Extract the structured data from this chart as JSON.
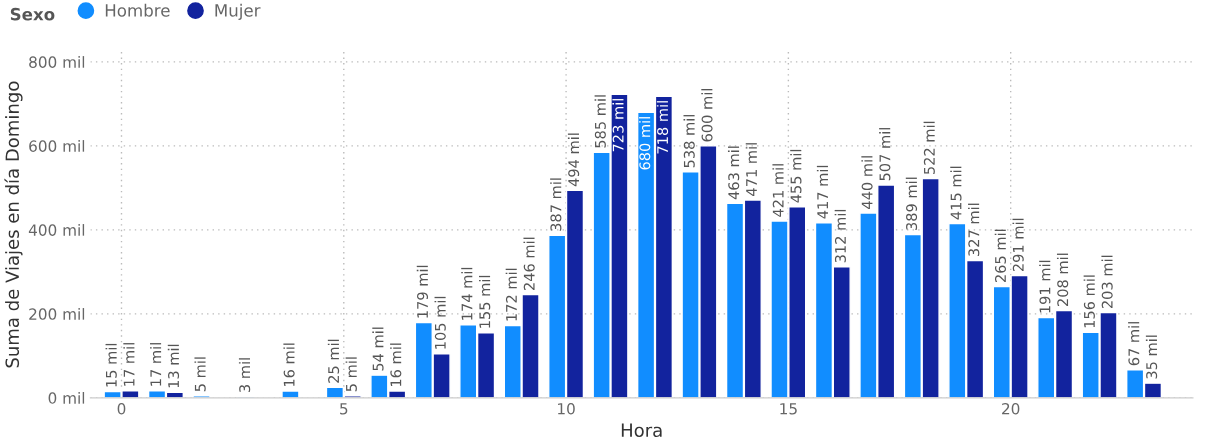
{
  "chart_data": {
    "type": "bar",
    "xlabel": "Hora",
    "ylabel": "Suma de Viajes en día Domingo",
    "legend_title": "Sexo",
    "legend": "top left",
    "x": [
      0,
      1,
      2,
      3,
      4,
      5,
      6,
      7,
      8,
      9,
      10,
      11,
      12,
      13,
      14,
      15,
      16,
      17,
      18,
      19,
      20,
      21,
      22,
      23
    ],
    "xlim": [
      -0.7,
      24.1
    ],
    "xticks": [
      0,
      5,
      10,
      15,
      20
    ],
    "ylim": [
      0,
      825
    ],
    "yticks": [
      {
        "value": 0,
        "label": "0 mil"
      },
      {
        "value": 200,
        "label": "200 mil"
      },
      {
        "value": 400,
        "label": "400 mil"
      },
      {
        "value": 600,
        "label": "600 mil"
      },
      {
        "value": 800,
        "label": "800 mil"
      }
    ],
    "grid": true,
    "series": [
      {
        "name": "Hombre",
        "color": "#118dff",
        "values": [
          15,
          17,
          5,
          3,
          16,
          25,
          54,
          179,
          174,
          172,
          387,
          585,
          680,
          538,
          463,
          421,
          417,
          440,
          389,
          415,
          265,
          191,
          156,
          67
        ],
        "value_labels": [
          "15 mil",
          "17 mil",
          "5 mil",
          "3 mil",
          "16 mil",
          "25 mil",
          "54 mil",
          "179 mil",
          "174 mil",
          "172 mil",
          "387 mil",
          "585 mil",
          "680 mil",
          "538 mil",
          "463 mil",
          "421 mil",
          "417 mil",
          "440 mil",
          "389 mil",
          "415 mil",
          "265 mil",
          "191 mil",
          "156 mil",
          "67 mil"
        ]
      },
      {
        "name": "Mujer",
        "color": "#12239e",
        "values": [
          17,
          13,
          null,
          null,
          null,
          5,
          16,
          105,
          155,
          246,
          494,
          723,
          718,
          600,
          471,
          455,
          312,
          507,
          522,
          327,
          291,
          208,
          203,
          35
        ],
        "value_labels": [
          "17 mil",
          "13 mil",
          null,
          null,
          null,
          "5 mil",
          "16 mil",
          "105 mil",
          "155 mil",
          "246 mil",
          "494 mil",
          "723 mil",
          "718 mil",
          "600 mil",
          "471 mil",
          "455 mil",
          "312 mil",
          "507 mil",
          "522 mil",
          "327 mil",
          "291 mil",
          "208 mil",
          "203 mil",
          "35 mil"
        ]
      }
    ]
  }
}
